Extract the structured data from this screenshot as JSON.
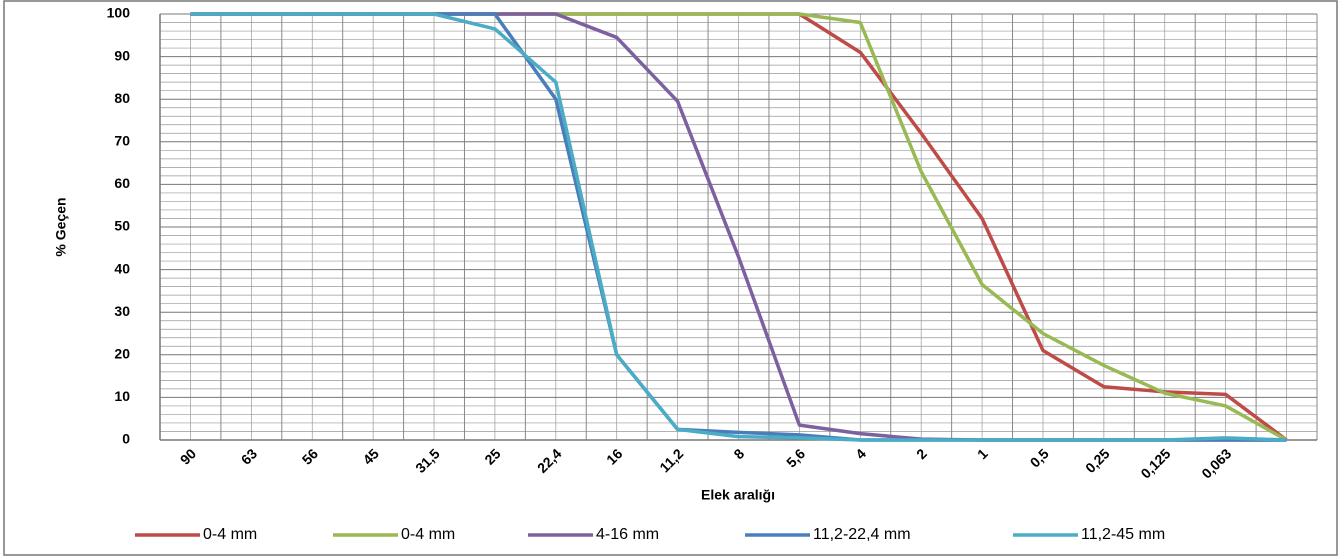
{
  "chart_data": {
    "type": "line",
    "x_label": "Elek aralığı",
    "y_label": "% Geçen",
    "categories": [
      "90",
      "63",
      "56",
      "45",
      "31,5",
      "25",
      "22,4",
      "16",
      "11,2",
      "8",
      "5,6",
      "4",
      "2",
      "1",
      "0,5",
      "0,25",
      "0,125",
      "0,063",
      null
    ],
    "ylim": [
      0,
      100
    ],
    "yticks": [
      0,
      10,
      20,
      30,
      40,
      50,
      60,
      70,
      80,
      90,
      100
    ],
    "grid": true,
    "legend": "bottom",
    "series": [
      {
        "name": "0-4 mm",
        "color": "#be4b48",
        "values": [
          100,
          100,
          100,
          100,
          100,
          100,
          100,
          100,
          100,
          100,
          100,
          91,
          72,
          52,
          21,
          12.5,
          11.3,
          10.7,
          0
        ]
      },
      {
        "name": "0-4 mm",
        "color": "#98b954",
        "values": [
          100,
          100,
          100,
          100,
          100,
          100,
          100,
          100,
          100,
          100,
          100,
          98,
          63,
          36.5,
          25,
          17.5,
          11,
          8,
          0
        ]
      },
      {
        "name": "4-16 mm",
        "color": "#7d60a0",
        "values": [
          100,
          100,
          100,
          100,
          100,
          100,
          100,
          94.5,
          79.5,
          43,
          3.5,
          1.5,
          0.2,
          0,
          0,
          0,
          0,
          0,
          0
        ]
      },
      {
        "name": "11,2-22,4 mm",
        "color": "#4a7ebb",
        "values": [
          100,
          100,
          100,
          100,
          100,
          100,
          80,
          20,
          2.5,
          1.8,
          1.2,
          0,
          0,
          0,
          0,
          0,
          0,
          0,
          0
        ]
      },
      {
        "name": "11,2-45 mm",
        "color": "#4bacc6",
        "values": [
          100,
          100,
          100,
          100,
          100,
          96.5,
          84,
          20,
          2.5,
          0.8,
          0.5,
          0,
          0,
          0,
          0,
          0,
          0,
          0.5,
          0
        ]
      }
    ]
  }
}
